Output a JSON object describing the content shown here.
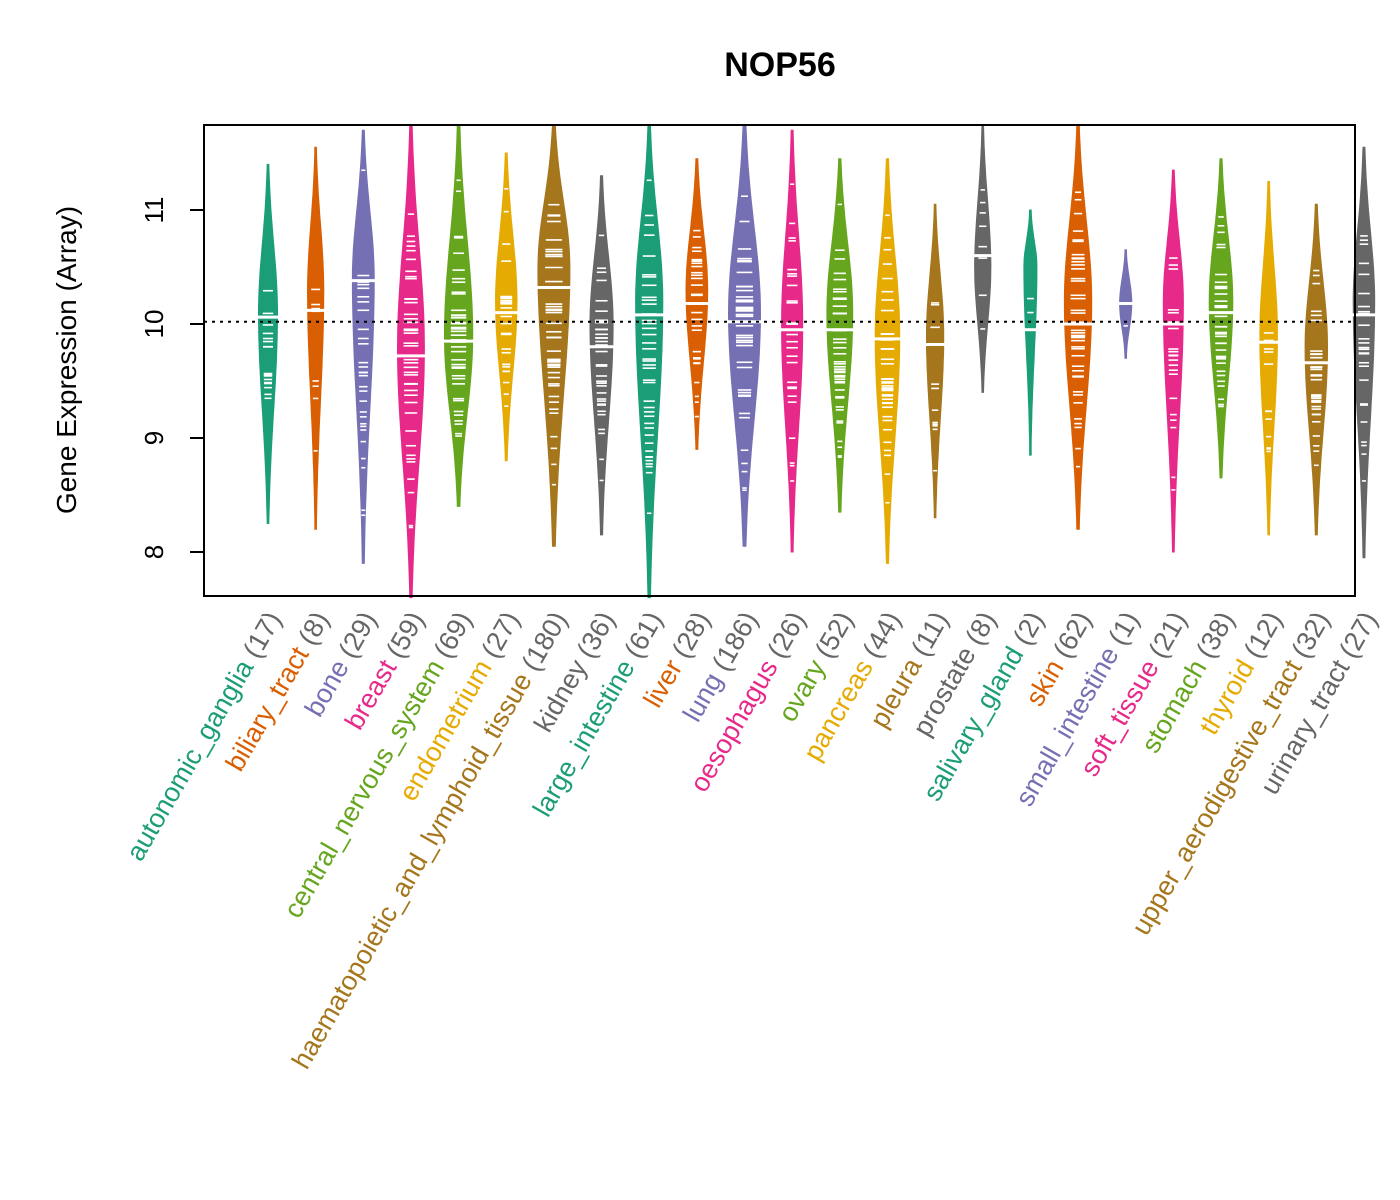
{
  "chart_data": {
    "type": "violin",
    "title": "NOP56",
    "ylabel": "Gene Expression (Array)",
    "ylim": [
      7.6,
      11.75
    ],
    "yticks": [
      8,
      9,
      10,
      11
    ],
    "reference_line": 10.02,
    "grid": false,
    "categories": [
      {
        "name": "autonomic_ganglia",
        "n": 17,
        "color": "#1B9E77",
        "median": 10.06,
        "min": 8.25,
        "max": 11.4,
        "peak": 10.1
      },
      {
        "name": "biliary_tract",
        "n": 8,
        "color": "#D95F02",
        "median": 10.12,
        "min": 8.2,
        "max": 11.55,
        "peak": 10.3
      },
      {
        "name": "bone",
        "n": 29,
        "color": "#7570B3",
        "median": 10.38,
        "min": 7.9,
        "max": 11.7,
        "peak": 10.4
      },
      {
        "name": "breast",
        "n": 59,
        "color": "#E7298A",
        "median": 9.72,
        "min": 7.6,
        "max": 11.75,
        "peak": 9.8
      },
      {
        "name": "central_nervous_system",
        "n": 69,
        "color": "#66A61E",
        "median": 9.85,
        "min": 8.4,
        "max": 11.75,
        "peak": 9.9
      },
      {
        "name": "endometrium",
        "n": 27,
        "color": "#E6AB02",
        "median": 10.1,
        "min": 8.8,
        "max": 11.5,
        "peak": 10.2
      },
      {
        "name": "haematopoietic_and_lymphoid_tissue",
        "n": 180,
        "color": "#A6761D",
        "median": 10.32,
        "min": 8.05,
        "max": 11.75,
        "peak": 10.5
      },
      {
        "name": "kidney",
        "n": 36,
        "color": "#666666",
        "median": 9.8,
        "min": 8.15,
        "max": 11.3,
        "peak": 10.0
      },
      {
        "name": "large_intestine",
        "n": 61,
        "color": "#1B9E77",
        "median": 10.08,
        "min": 7.6,
        "max": 11.75,
        "peak": 10.2
      },
      {
        "name": "liver",
        "n": 28,
        "color": "#D95F02",
        "median": 10.18,
        "min": 8.9,
        "max": 11.45,
        "peak": 10.3
      },
      {
        "name": "lung",
        "n": 186,
        "color": "#7570B3",
        "median": 10.02,
        "min": 8.05,
        "max": 11.75,
        "peak": 10.1
      },
      {
        "name": "oesophagus",
        "n": 26,
        "color": "#E7298A",
        "median": 9.95,
        "min": 8.0,
        "max": 11.7,
        "peak": 10.0
      },
      {
        "name": "ovary",
        "n": 52,
        "color": "#66A61E",
        "median": 9.95,
        "min": 8.35,
        "max": 11.45,
        "peak": 10.1
      },
      {
        "name": "pancreas",
        "n": 44,
        "color": "#E6AB02",
        "median": 9.87,
        "min": 7.9,
        "max": 11.45,
        "peak": 9.9
      },
      {
        "name": "pleura",
        "n": 11,
        "color": "#A6761D",
        "median": 9.82,
        "min": 8.3,
        "max": 11.05,
        "peak": 9.9
      },
      {
        "name": "prostate",
        "n": 8,
        "color": "#666666",
        "median": 10.6,
        "min": 9.4,
        "max": 11.75,
        "peak": 10.5
      },
      {
        "name": "salivary_gland",
        "n": 2,
        "color": "#1B9E77",
        "median": 9.95,
        "min": 8.85,
        "max": 11.0,
        "peak": 10.5
      },
      {
        "name": "skin",
        "n": 62,
        "color": "#D95F02",
        "median": 10.0,
        "min": 8.2,
        "max": 11.75,
        "peak": 10.2
      },
      {
        "name": "small_intestine",
        "n": 1,
        "color": "#7570B3",
        "median": 10.18,
        "min": 9.7,
        "max": 10.65,
        "peak": 10.18
      },
      {
        "name": "soft_tissue",
        "n": 21,
        "color": "#E7298A",
        "median": 10.0,
        "min": 8.0,
        "max": 11.35,
        "peak": 10.2
      },
      {
        "name": "stomach",
        "n": 38,
        "color": "#66A61E",
        "median": 10.1,
        "min": 8.65,
        "max": 11.45,
        "peak": 10.2
      },
      {
        "name": "thyroid",
        "n": 12,
        "color": "#E6AB02",
        "median": 9.84,
        "min": 8.15,
        "max": 11.25,
        "peak": 9.9
      },
      {
        "name": "upper_aerodigestive_tract",
        "n": 32,
        "color": "#A6761D",
        "median": 9.66,
        "min": 8.15,
        "max": 11.05,
        "peak": 9.8
      },
      {
        "name": "urinary_tract",
        "n": 27,
        "color": "#666666",
        "median": 10.08,
        "min": 7.95,
        "max": 11.55,
        "peak": 10.2
      }
    ]
  }
}
